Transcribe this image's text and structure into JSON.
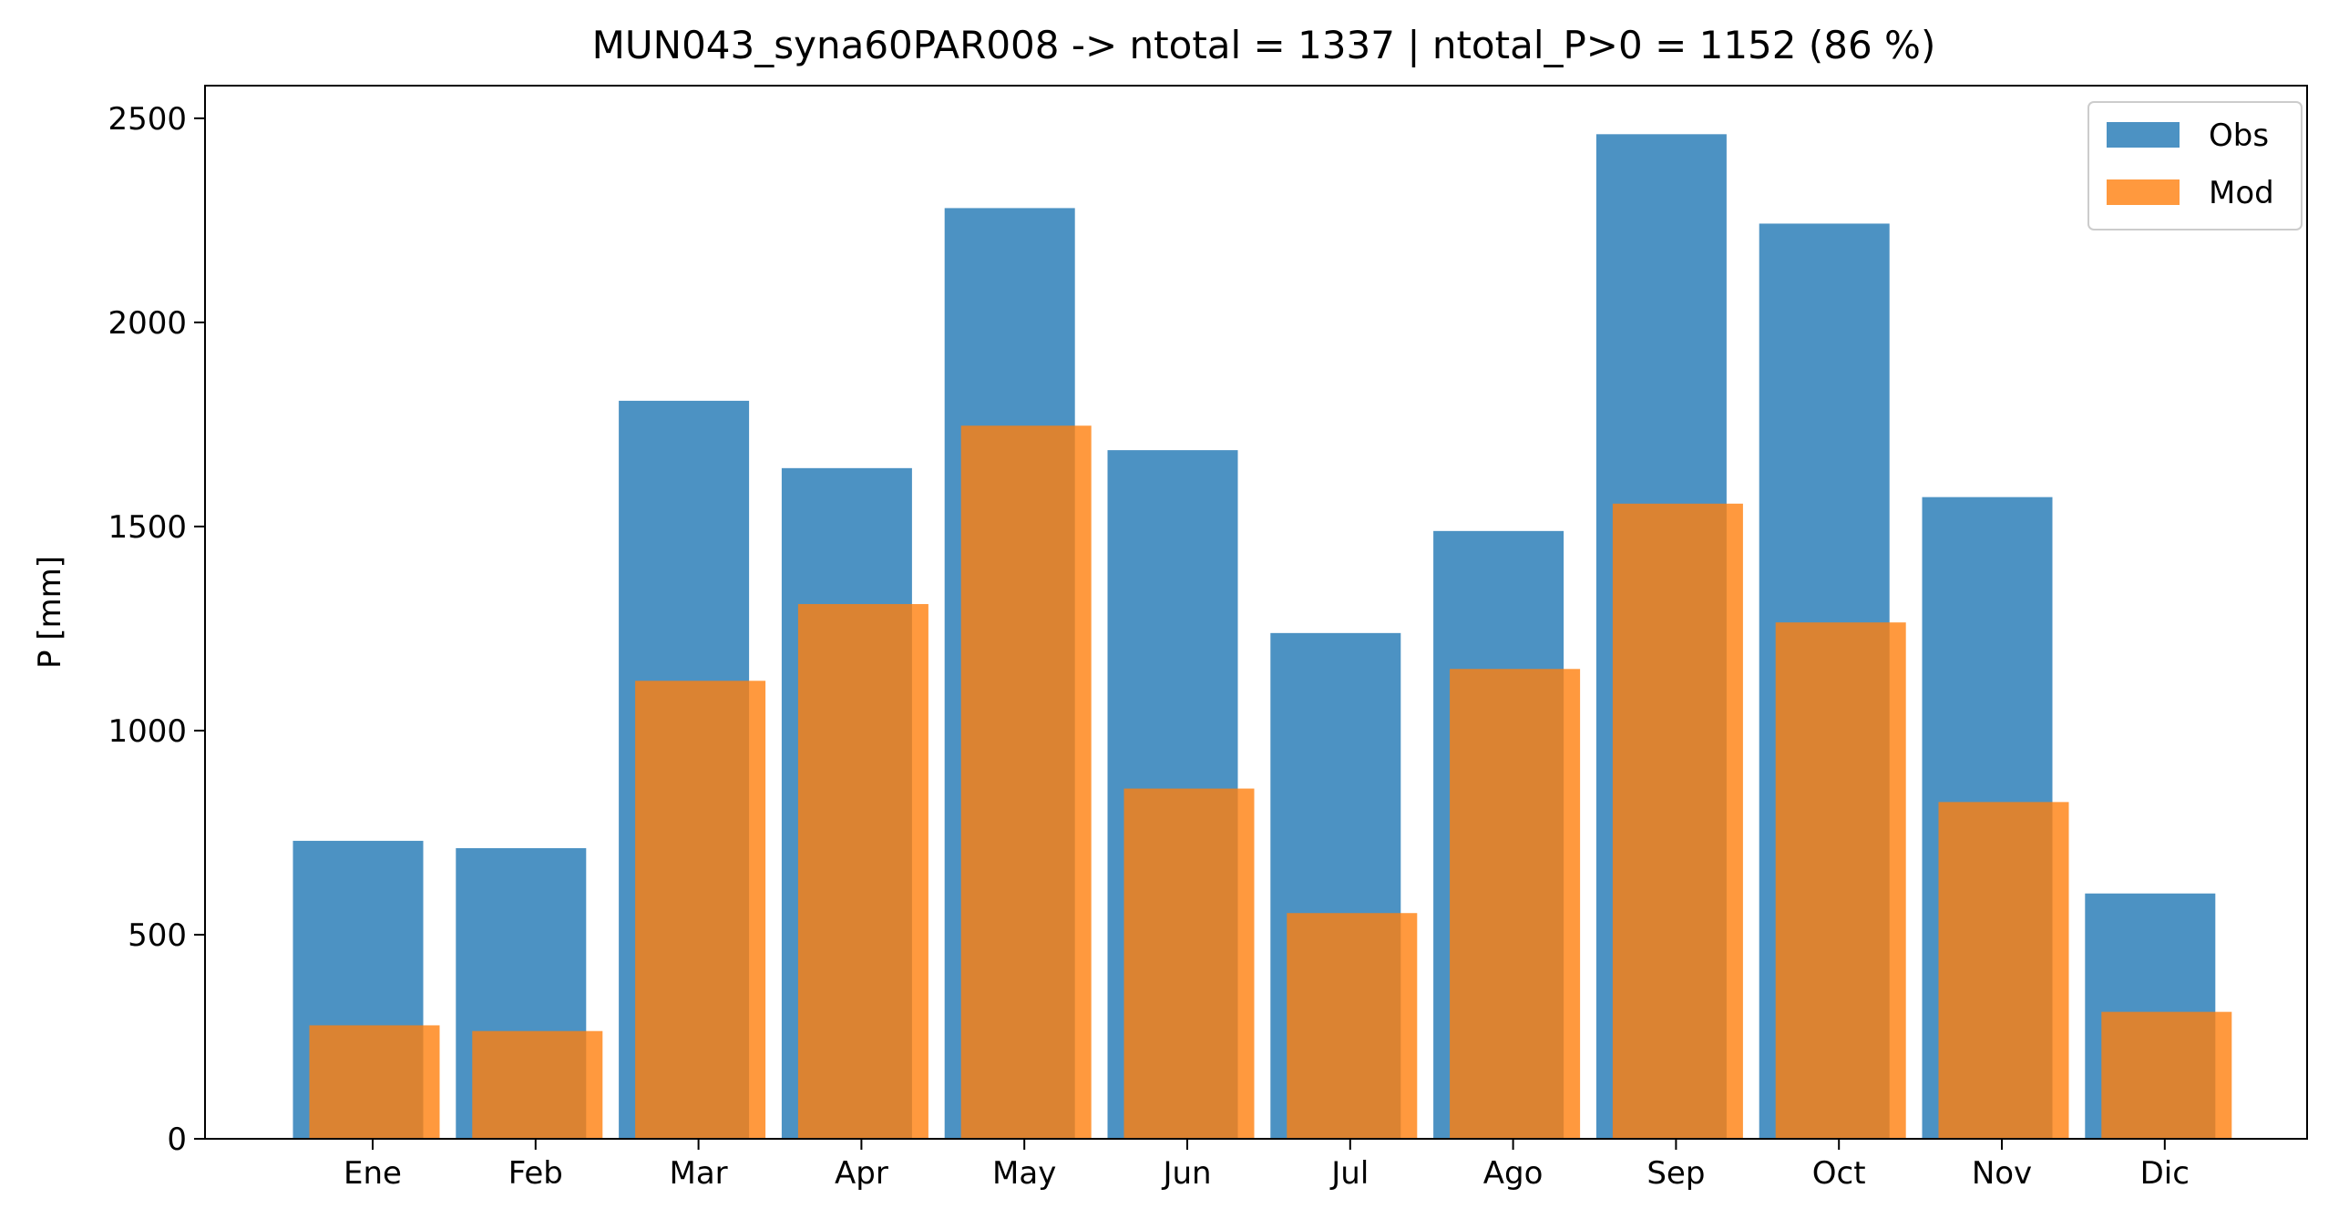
{
  "chart_data": {
    "type": "bar",
    "title": "MUN043_syna60PAR008 -> ntotal = 1337 | ntotal_P>0 = 1152 (86 %)",
    "xlabel": "",
    "ylabel": "P [mm]",
    "categories": [
      "Ene",
      "Feb",
      "Mar",
      "Apr",
      "May",
      "Jun",
      "Jul",
      "Ago",
      "Sep",
      "Oct",
      "Nov",
      "Dic"
    ],
    "series": [
      {
        "name": "Obs",
        "color": "#1f77b4",
        "values": [
          730,
          712,
          1808,
          1643,
          2280,
          1687,
          1239,
          1489,
          2461,
          2242,
          1572,
          601
        ]
      },
      {
        "name": "Mod",
        "color": "#ff7f0e",
        "values": [
          278,
          264,
          1122,
          1310,
          1747,
          858,
          553,
          1151,
          1556,
          1265,
          825,
          311
        ]
      }
    ],
    "ylim": [
      0,
      2500
    ],
    "yticks": [
      0,
      500,
      1000,
      1500,
      2000,
      2500
    ],
    "legend": "top-right",
    "grid": false
  }
}
